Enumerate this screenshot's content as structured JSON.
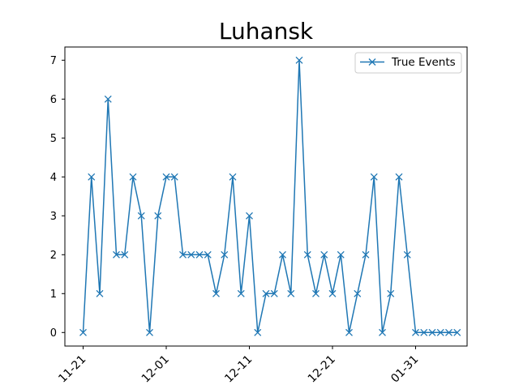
{
  "chart_data": {
    "type": "line",
    "title": "Luhansk",
    "xlabel": "",
    "ylabel": "",
    "ylim": [
      -0.35,
      7.35
    ],
    "yticks": [
      0,
      1,
      2,
      3,
      4,
      5,
      6,
      7
    ],
    "xtick_labels": [
      "11-21",
      "12-01",
      "12-11",
      "12-21",
      "01-31"
    ],
    "xtick_index": [
      0,
      10,
      20,
      30,
      40
    ],
    "legend": {
      "entries": [
        "True Events"
      ],
      "placement": "top-right"
    },
    "grid": false,
    "series": [
      {
        "name": "True Events",
        "color": "#1f77b4",
        "marker": "x",
        "values": [
          0,
          4,
          1,
          6,
          2,
          2,
          4,
          3,
          0,
          3,
          4,
          4,
          2,
          2,
          2,
          2,
          1,
          2,
          4,
          1,
          3,
          0,
          1,
          1,
          2,
          1,
          7,
          2,
          1,
          2,
          1,
          2,
          0,
          1,
          2,
          4,
          0,
          1,
          4,
          2,
          0,
          0,
          0,
          0,
          0,
          0
        ]
      }
    ]
  }
}
